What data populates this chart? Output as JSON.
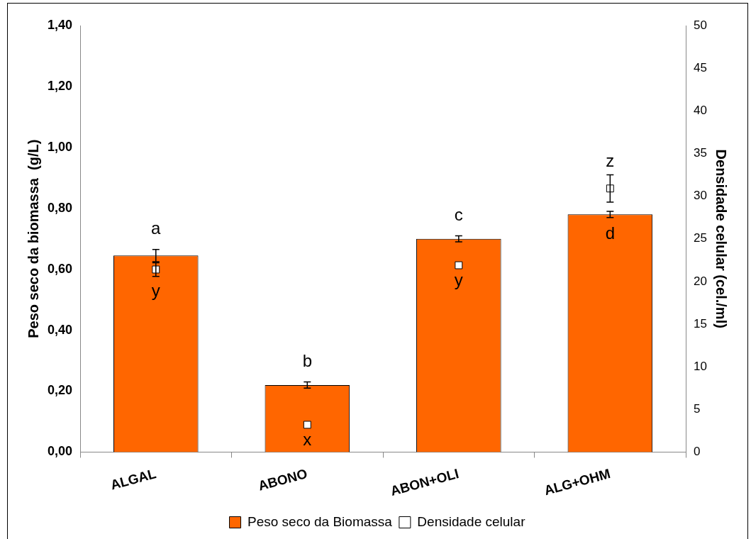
{
  "chart_data": {
    "type": "bar",
    "categories": [
      "ALGAL",
      "ABONO",
      "ABON+OLI",
      "ALG+OHM"
    ],
    "ylabel": "Peso seco da biomassa  (g/L)",
    "y2label": "Densidade celular (cel./ml)",
    "ylim": [
      0,
      1.4
    ],
    "yticks": [
      {
        "value": 0,
        "label": "0,00"
      },
      {
        "value": 0.2,
        "label": "0,20"
      },
      {
        "value": 0.4,
        "label": "0,40"
      },
      {
        "value": 0.6,
        "label": "0,60"
      },
      {
        "value": 0.8,
        "label": "0,80"
      },
      {
        "value": 1.0,
        "label": "1,00"
      },
      {
        "value": 1.2,
        "label": "1,20"
      },
      {
        "value": 1.4,
        "label": "1,40"
      }
    ],
    "y2lim": [
      0,
      50
    ],
    "y2ticks": [
      0,
      5,
      10,
      15,
      20,
      25,
      30,
      35,
      40,
      45,
      50
    ],
    "series": [
      {
        "name": "Peso seco da Biomassa",
        "color": "#ff6600",
        "values": [
          0.645,
          0.22,
          0.7,
          0.78
        ],
        "errors": [
          0.02,
          0.01,
          0.01,
          0.01
        ]
      },
      {
        "name": "Densidade celular",
        "type": "scatter",
        "axis": "y2",
        "color": "#ffffff",
        "marker": "square",
        "values": [
          21.4,
          3.2,
          21.9,
          30.9
        ],
        "errors": [
          0.8,
          null,
          null,
          1.6
        ]
      }
    ],
    "annotations": [
      "a",
      "b",
      "c",
      "d",
      "y",
      "x",
      "y",
      "z"
    ],
    "grid": false,
    "legend": "bottom"
  }
}
